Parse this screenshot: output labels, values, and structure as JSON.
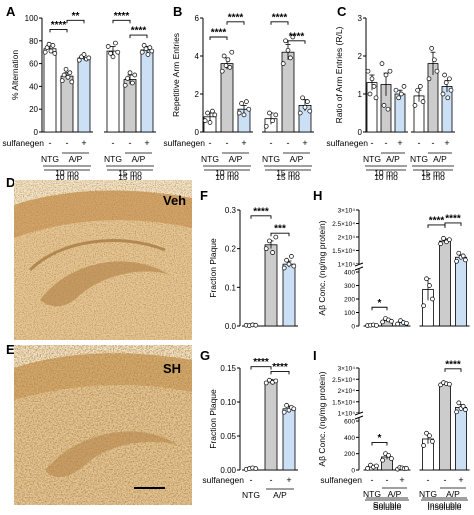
{
  "figure": {
    "panel_letters": [
      "A",
      "B",
      "C",
      "D",
      "E",
      "F",
      "G",
      "H",
      "I"
    ],
    "micrograph_labels": {
      "D": "Veh",
      "E": "SH"
    },
    "treatment_label": "sulfanegen",
    "group_labels": [
      "NTG",
      "A/P"
    ],
    "age_labels": [
      "10 mo",
      "15 mo"
    ],
    "fraction_labels": [
      "Soluble",
      "Insoluble"
    ],
    "sign_labels": [
      "-",
      "-",
      "+"
    ],
    "colors": {
      "ntg": "#ffffff",
      "ap_veh": "#cccccc",
      "ap_sh": "#cce0f5",
      "point": "#ffffff",
      "edge": "#000000",
      "tissue_bg": "#f1e0c5",
      "tissue_stain": "#8a5a22"
    }
  },
  "chart_data": [
    {
      "panel": "A",
      "type": "bar",
      "ylabel": "% Alternation",
      "ylim": [
        0,
        100
      ],
      "yticks": [
        "0",
        "20",
        "40",
        "60",
        "80",
        "100"
      ],
      "groups": [
        {
          "label": "10 mo",
          "bars": [
            {
              "cond": "NTG",
              "value": 73,
              "err": 3,
              "points": [
                70,
                74,
                77,
                71,
                76,
                69
              ]
            },
            {
              "cond": "A/P veh",
              "value": 49,
              "err": 3,
              "points": [
                45,
                50,
                55,
                48,
                52,
                44
              ]
            },
            {
              "cond": "A/P sulfanegen",
              "value": 65,
              "err": 2,
              "points": [
                63,
                66,
                68,
                64,
                65
              ]
            }
          ]
        },
        {
          "label": "15 mo",
          "bars": [
            {
              "cond": "NTG",
              "value": 71,
              "err": 4,
              "points": [
                75,
                69,
                66,
                78,
                70
              ]
            },
            {
              "cond": "A/P veh",
              "value": 46,
              "err": 4,
              "points": [
                41,
                47,
                52,
                43,
                50
              ]
            },
            {
              "cond": "A/P sulfanegen",
              "value": 72,
              "err": 3,
              "points": [
                70,
                76,
                73,
                68,
                74,
                71
              ]
            }
          ]
        }
      ],
      "sig": [
        {
          "from": [
            0,
            0
          ],
          "to": [
            0,
            1
          ],
          "text": "****",
          "y": 90
        },
        {
          "from": [
            0,
            1
          ],
          "to": [
            0,
            2
          ],
          "text": "**",
          "y": 98
        },
        {
          "from": [
            1,
            0
          ],
          "to": [
            1,
            1
          ],
          "text": "****",
          "y": 98
        },
        {
          "from": [
            1,
            1
          ],
          "to": [
            1,
            2
          ],
          "text": "****",
          "y": 85
        }
      ]
    },
    {
      "panel": "B",
      "type": "bar",
      "ylabel": "Repetitive Arm Entries",
      "ylim": [
        0,
        6
      ],
      "yticks": [
        "0",
        "2",
        "4",
        "6"
      ],
      "groups": [
        {
          "label": "10 mo",
          "bars": [
            {
              "cond": "NTG",
              "value": 0.8,
              "err": 0.2,
              "points": [
                0.6,
                1.0,
                0.5,
                1.1,
                0.9
              ]
            },
            {
              "cond": "A/P veh",
              "value": 3.6,
              "err": 0.3,
              "points": [
                3.2,
                4.0,
                3.5,
                3.8,
                3.4,
                4.2
              ]
            },
            {
              "cond": "A/P sulfanegen",
              "value": 1.2,
              "err": 0.2,
              "points": [
                1.0,
                1.5,
                0.9,
                1.6,
                1.2
              ]
            }
          ]
        },
        {
          "label": "15 mo",
          "bars": [
            {
              "cond": "NTG",
              "value": 0.7,
              "err": 0.3,
              "points": [
                0.3,
                1.0,
                0.6,
                0.9
              ]
            },
            {
              "cond": "A/P veh",
              "value": 4.2,
              "err": 0.4,
              "points": [
                3.6,
                4.8,
                4.3,
                3.9,
                5.0
              ]
            },
            {
              "cond": "A/P sulfanegen",
              "value": 1.4,
              "err": 0.3,
              "points": [
                1.0,
                1.8,
                1.3,
                1.6,
                1.1
              ]
            }
          ]
        }
      ],
      "sig": [
        {
          "from": [
            0,
            0
          ],
          "to": [
            0,
            1
          ],
          "text": "****",
          "y": 5.0
        },
        {
          "from": [
            0,
            1
          ],
          "to": [
            0,
            2
          ],
          "text": "****",
          "y": 5.8
        },
        {
          "from": [
            1,
            0
          ],
          "to": [
            1,
            1
          ],
          "text": "****",
          "y": 5.8
        },
        {
          "from": [
            1,
            1
          ],
          "to": [
            1,
            2
          ],
          "text": "****",
          "y": 4.8
        }
      ]
    },
    {
      "panel": "C",
      "type": "bar",
      "ylabel": "Ratio of Arm Entries (R/L)",
      "ylim": [
        0,
        3
      ],
      "yticks": [
        "0",
        "1",
        "2",
        "3"
      ],
      "groups": [
        {
          "label": "10 mo",
          "bars": [
            {
              "cond": "NTG",
              "value": 1.3,
              "err": 0.2,
              "points": [
                1.6,
                1.0,
                1.4,
                1.2,
                0.9
              ]
            },
            {
              "cond": "A/P veh",
              "value": 1.25,
              "err": 0.3,
              "points": [
                1.8,
                0.7,
                1.5,
                0.6,
                1.6
              ]
            },
            {
              "cond": "A/P sulfanegen",
              "value": 1.0,
              "err": 0.1,
              "points": [
                1.1,
                0.9,
                1.0,
                1.2
              ]
            }
          ]
        },
        {
          "label": "15 mo",
          "bars": [
            {
              "cond": "NTG",
              "value": 0.95,
              "err": 0.15,
              "points": [
                0.7,
                1.1,
                1.2,
                0.8
              ]
            },
            {
              "cond": "A/P veh",
              "value": 1.8,
              "err": 0.3,
              "points": [
                1.4,
                2.2,
                1.9,
                1.6
              ]
            },
            {
              "cond": "A/P sulfanegen",
              "value": 1.2,
              "err": 0.15,
              "points": [
                1.0,
                1.5,
                1.3,
                0.9,
                1.4,
                1.1
              ]
            }
          ]
        }
      ],
      "sig": []
    },
    {
      "panel": "F",
      "type": "bar",
      "ylabel": "Fraction Plaque",
      "ylim": [
        0,
        0.3
      ],
      "yticks": [
        "0.0",
        "0.1",
        "0.2",
        "0.3"
      ],
      "groups": [
        {
          "label": "",
          "bars": [
            {
              "cond": "NTG",
              "value": 0.002,
              "err": 0.001,
              "points": [
                0.002,
                0.001,
                0.003,
                0.002
              ]
            },
            {
              "cond": "A/P veh",
              "value": 0.21,
              "err": 0.01,
              "points": [
                0.2,
                0.22,
                0.19,
                0.23
              ]
            },
            {
              "cond": "A/P sulfanegen",
              "value": 0.16,
              "err": 0.008,
              "points": [
                0.15,
                0.17,
                0.16,
                0.18,
                0.155
              ]
            }
          ]
        }
      ],
      "sig": [
        {
          "from": [
            0,
            0
          ],
          "to": [
            0,
            1
          ],
          "text": "****",
          "y": 0.285
        },
        {
          "from": [
            0,
            1
          ],
          "to": [
            0,
            2
          ],
          "text": "***",
          "y": 0.24
        }
      ]
    },
    {
      "panel": "G",
      "type": "bar",
      "ylabel": "Fraction Plaque",
      "ylim": [
        0,
        0.15
      ],
      "yticks": [
        "0.00",
        "0.05",
        "0.10",
        "0.15"
      ],
      "groups": [
        {
          "label": "",
          "bars": [
            {
              "cond": "NTG",
              "value": 0.002,
              "err": 0.001,
              "points": [
                0.001,
                0.002,
                0.003,
                0.002
              ]
            },
            {
              "cond": "A/P veh",
              "value": 0.13,
              "err": 0.003,
              "points": [
                0.128,
                0.132,
                0.129,
                0.131
              ]
            },
            {
              "cond": "A/P sulfanegen",
              "value": 0.09,
              "err": 0.004,
              "points": [
                0.085,
                0.095,
                0.088,
                0.092,
                0.09
              ]
            }
          ]
        }
      ],
      "sig": [
        {
          "from": [
            0,
            0
          ],
          "to": [
            0,
            1
          ],
          "text": "****",
          "y": 0.152
        },
        {
          "from": [
            0,
            1
          ],
          "to": [
            0,
            2
          ],
          "text": "****",
          "y": 0.145
        }
      ]
    },
    {
      "panel": "H",
      "type": "bar",
      "ylabel": "Aβ Conc. (ng/mg protein)",
      "scale": "broken",
      "lower_ticks": [
        "0",
        "100",
        "200",
        "300",
        "400"
      ],
      "upper_ticks": [
        "1×10⁴",
        "1.5×10⁴",
        "2×10⁴",
        "2.5×10⁴",
        "3×10⁴"
      ],
      "groups": [
        {
          "label": "Soluble",
          "bars": [
            {
              "cond": "NTG",
              "value": 5,
              "err": 2,
              "points": [
                3,
                6,
                8,
                4
              ]
            },
            {
              "cond": "A/P veh",
              "value": 40,
              "err": 10,
              "points": [
                30,
                55,
                45,
                35
              ]
            },
            {
              "cond": "A/P sulfanegen",
              "value": 25,
              "err": 10,
              "points": [
                15,
                40,
                25,
                20
              ]
            }
          ]
        },
        {
          "label": "Insoluble",
          "bars": [
            {
              "cond": "NTG",
              "value": 270,
              "err": 80,
              "points": [
                150,
                350,
                300,
                200
              ]
            },
            {
              "cond": "A/P veh",
              "value": 18500,
              "err": 800,
              "points": [
                17500,
                19500,
                18200,
                19000
              ]
            },
            {
              "cond": "A/P sulfanegen",
              "value": 12500,
              "err": 800,
              "points": [
                11000,
                14000,
                12500,
                13000,
                11500
              ]
            }
          ]
        }
      ],
      "sig": [
        {
          "from": [
            0,
            0
          ],
          "to": [
            0,
            1
          ],
          "text": "*"
        },
        {
          "from": [
            1,
            0
          ],
          "to": [
            1,
            1
          ],
          "text": "****"
        },
        {
          "from": [
            1,
            1
          ],
          "to": [
            1,
            2
          ],
          "text": "****"
        }
      ]
    },
    {
      "panel": "I",
      "type": "bar",
      "ylabel": "Aβ Conc. (ng/mg protein)",
      "scale": "broken",
      "lower_ticks": [
        "0",
        "200",
        "400",
        "600"
      ],
      "upper_ticks": [
        "1×10⁴",
        "1.5×10⁴",
        "2×10⁴",
        "2.5×10⁴",
        "3×10⁴"
      ],
      "groups": [
        {
          "label": "Soluble",
          "bars": [
            {
              "cond": "NTG",
              "value": 40,
              "err": 15,
              "points": [
                20,
                60,
                35,
                50
              ]
            },
            {
              "cond": "A/P veh",
              "value": 160,
              "err": 30,
              "points": [
                120,
                200,
                180,
                140
              ]
            },
            {
              "cond": "A/P sulfanegen",
              "value": 20,
              "err": 8,
              "points": [
                10,
                30,
                25,
                15,
                20
              ]
            }
          ]
        },
        {
          "label": "Insoluble",
          "bars": [
            {
              "cond": "NTG",
              "value": 380,
              "err": 60,
              "points": [
                300,
                450,
                420,
                350
              ]
            },
            {
              "cond": "A/P veh",
              "value": 23000,
              "err": 400,
              "points": [
                22500,
                23500,
                23000,
                22800
              ]
            },
            {
              "cond": "A/P sulfanegen",
              "value": 12500,
              "err": 1200,
              "points": [
                10500,
                14500,
                12000,
                13000,
                11500
              ]
            }
          ]
        }
      ],
      "sig": [
        {
          "from": [
            0,
            0
          ],
          "to": [
            0,
            1
          ],
          "text": "*"
        },
        {
          "from": [
            1,
            1
          ],
          "to": [
            1,
            2
          ],
          "text": "****"
        }
      ]
    }
  ]
}
